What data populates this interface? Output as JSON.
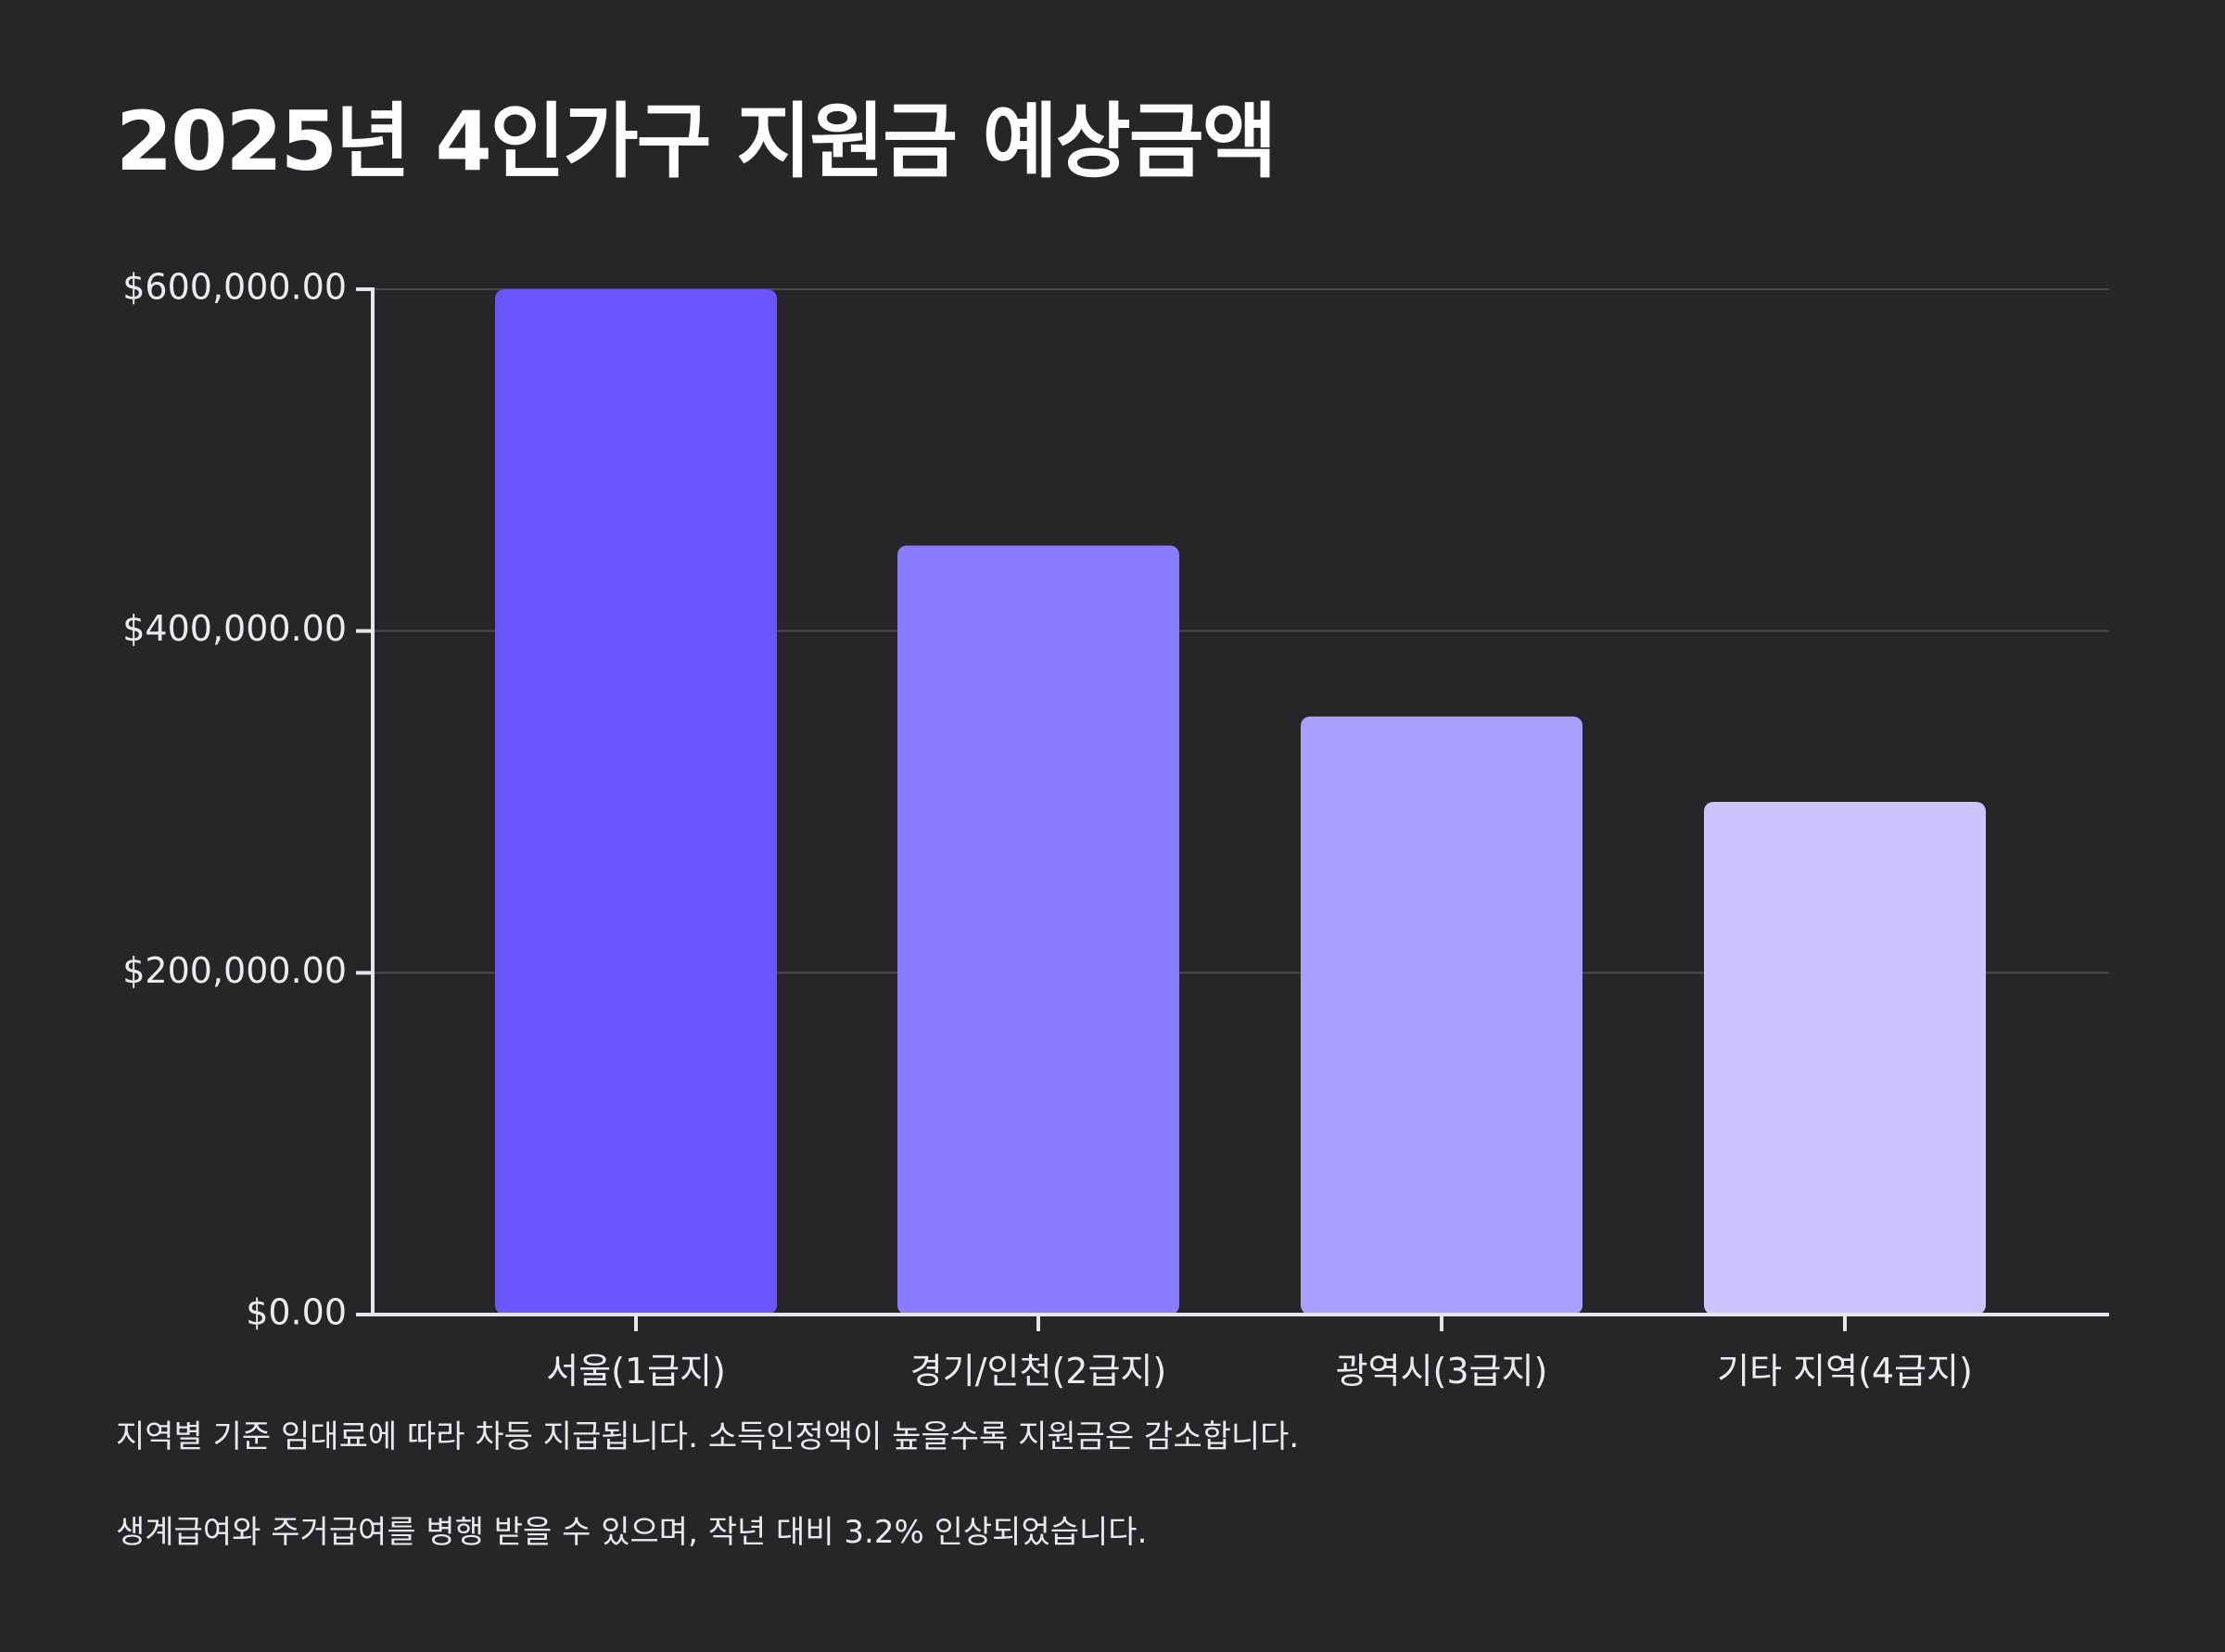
{
  "title": "2025년 4인가구 지원금 예상금액",
  "notes": [
    "지역별 기준 임대료에 따라 차등 지급됩니다. 소득인정액이 높을수록 지원금은 감소합니다.",
    "생계급여와 주거급여를 병행 받을 수 있으며, 작년 대비 3.2% 인상되었습니다."
  ],
  "colors": {
    "background": "#262527",
    "axis": "#e6e6ea",
    "grid": "#4a494d",
    "bars": [
      "#6a55ff",
      "#8a7bff",
      "#a89fff",
      "#cbc4ff"
    ]
  },
  "chart_data": {
    "type": "bar",
    "title": "2025년 4인가구 지원금 예상금액",
    "xlabel": "",
    "ylabel": "",
    "categories": [
      "서울(1급지)",
      "경기/인천(2급지)",
      "광역시(3급지)",
      "기타 지역(4급지)"
    ],
    "values": [
      600000,
      450000,
      350000,
      300000
    ],
    "ylim": [
      0,
      600000
    ],
    "yticks": [
      0,
      200000,
      400000,
      600000
    ],
    "ytick_labels": [
      "$0.00",
      "$200,000.00",
      "$400,000.00",
      "$600,000.00"
    ],
    "grid": true,
    "legend": "none"
  }
}
